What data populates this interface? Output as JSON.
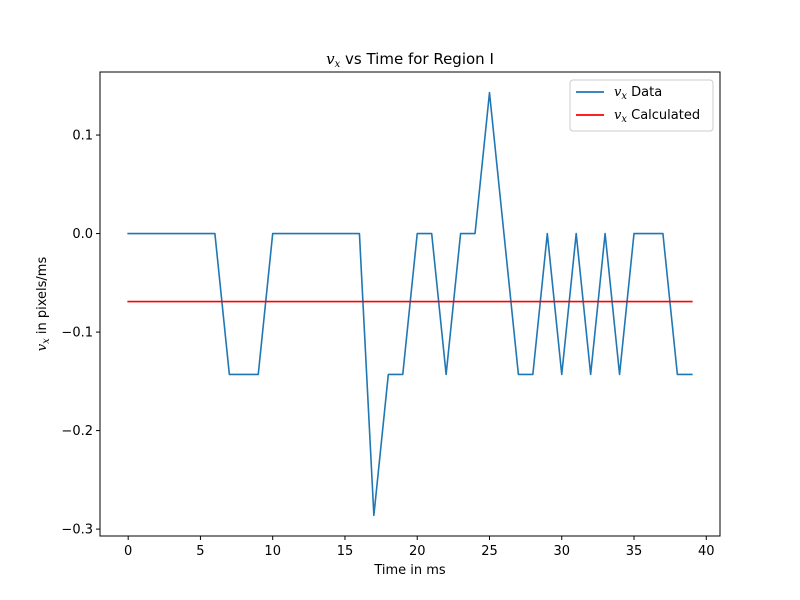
{
  "chart_data": {
    "type": "line",
    "title_var": "v",
    "title_sub": "x",
    "title_rest": " vs Time for Region I",
    "xlabel": "Time in ms",
    "ylabel_var": "v",
    "ylabel_sub": "x",
    "ylabel_rest": " in pixels/ms",
    "xlim": [
      -1.95,
      40.95
    ],
    "ylim": [
      -0.307,
      0.164
    ],
    "xticks": [
      0,
      5,
      10,
      15,
      20,
      25,
      30,
      35,
      40
    ],
    "xtick_labels": [
      "0",
      "5",
      "10",
      "15",
      "20",
      "25",
      "30",
      "35",
      "40"
    ],
    "yticks": [
      -0.3,
      -0.2,
      -0.1,
      0.0,
      0.1
    ],
    "ytick_labels": [
      "−0.3",
      "−0.2",
      "−0.1",
      "0.0",
      "0.1"
    ],
    "legend_position": "upper-right",
    "series": [
      {
        "name_var": "v",
        "name_sub": "x",
        "name_rest": " Data",
        "color": "#1f77b4",
        "x": [
          0,
          1,
          2,
          3,
          4,
          5,
          6,
          7,
          8,
          9,
          10,
          11,
          12,
          13,
          14,
          15,
          16,
          17,
          18,
          19,
          20,
          21,
          22,
          23,
          24,
          25,
          26,
          27,
          28,
          29,
          30,
          31,
          32,
          33,
          34,
          35,
          36,
          37,
          38,
          39
        ],
        "y": [
          0,
          0,
          0,
          0,
          0,
          0,
          0,
          -0.143,
          -0.143,
          -0.143,
          0,
          0,
          0,
          0,
          0,
          0,
          0,
          -0.286,
          -0.143,
          -0.143,
          0,
          0,
          -0.143,
          0,
          0,
          0.143,
          0,
          -0.143,
          -0.143,
          0,
          -0.143,
          0,
          -0.143,
          0,
          -0.143,
          0,
          0,
          0,
          -0.143,
          -0.143
        ]
      },
      {
        "name_var": "v",
        "name_sub": "x",
        "name_rest": " Calculated",
        "color": "#ff0000",
        "x": [
          0,
          39
        ],
        "y": [
          -0.069,
          -0.069
        ]
      }
    ]
  }
}
